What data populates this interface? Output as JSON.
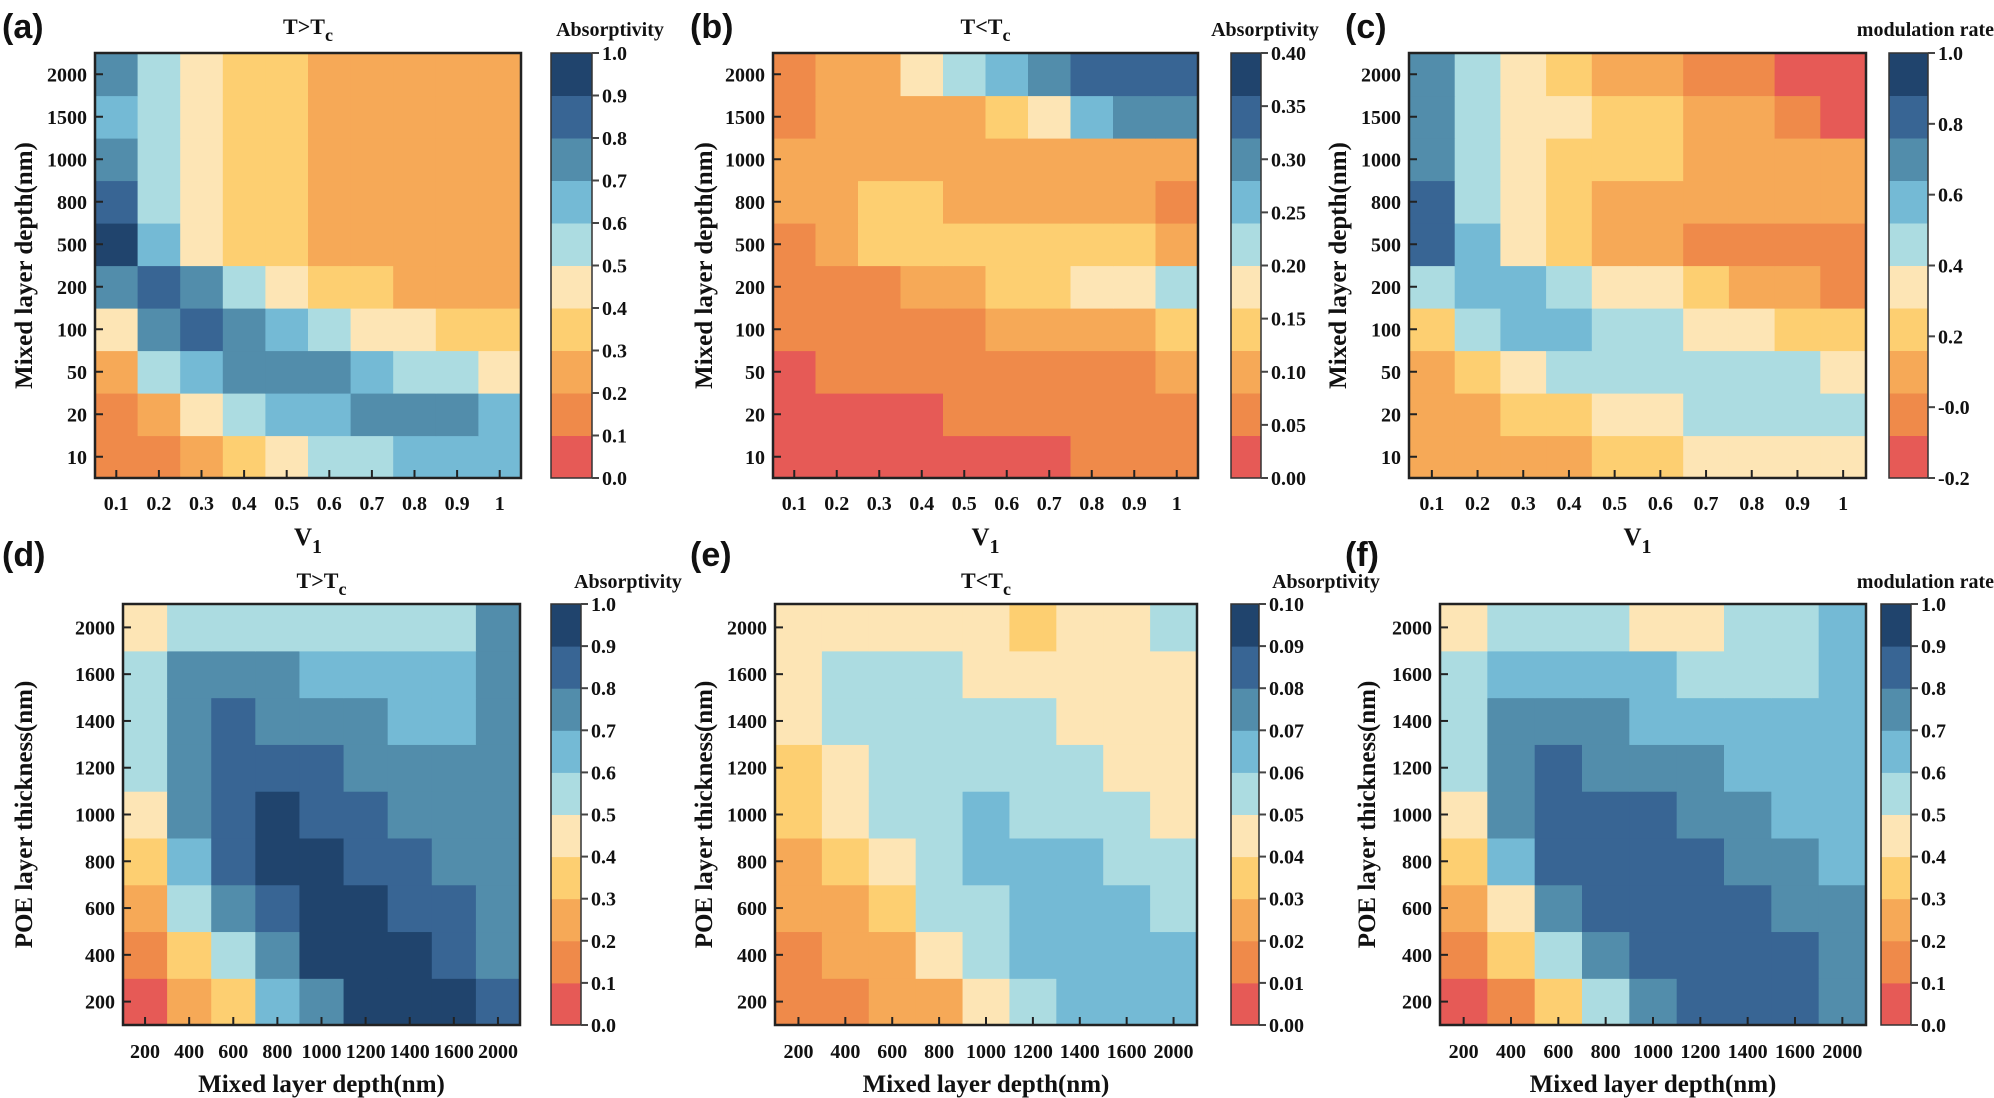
{
  "colormap": [
    "#e65a56",
    "#ef8a4a",
    "#f6a957",
    "#fdcf71",
    "#fde5b5",
    "#acdce1",
    "#74bad5",
    "#528dab",
    "#386594",
    "#20446d"
  ],
  "chart_data": [
    {
      "panel": "(a)",
      "type": "heatmap",
      "title": {
        "main": "T>T",
        "sub": "c"
      },
      "xlabel": {
        "main": "V",
        "sub": "1"
      },
      "ylabel": "Mixed layer depth(nm)",
      "x": [
        "0.1",
        "0.2",
        "0.3",
        "0.4",
        "0.5",
        "0.6",
        "0.7",
        "0.8",
        "0.9",
        "1"
      ],
      "y": [
        "10",
        "20",
        "50",
        "100",
        "200",
        "500",
        "800",
        "1000",
        "1500",
        "2000"
      ],
      "colorbar": {
        "label": "Absorptivity",
        "range": [
          0,
          1.0
        ],
        "ticks": [
          "0.0",
          "0.1",
          "0.2",
          "0.3",
          "0.4",
          "0.5",
          "0.6",
          "0.7",
          "0.8",
          "0.9",
          "1.0"
        ]
      },
      "z": [
        [
          0.15,
          0.15,
          0.25,
          0.35,
          0.45,
          0.55,
          0.55,
          0.65,
          0.65,
          0.65
        ],
        [
          0.15,
          0.25,
          0.45,
          0.55,
          0.65,
          0.65,
          0.75,
          0.75,
          0.75,
          0.65
        ],
        [
          0.25,
          0.55,
          0.65,
          0.75,
          0.75,
          0.75,
          0.65,
          0.55,
          0.55,
          0.45
        ],
        [
          0.45,
          0.75,
          0.85,
          0.75,
          0.65,
          0.55,
          0.45,
          0.45,
          0.35,
          0.35
        ],
        [
          0.75,
          0.85,
          0.75,
          0.55,
          0.45,
          0.35,
          0.35,
          0.25,
          0.25,
          0.25
        ],
        [
          0.95,
          0.65,
          0.45,
          0.35,
          0.35,
          0.25,
          0.25,
          0.25,
          0.25,
          0.25
        ],
        [
          0.85,
          0.55,
          0.45,
          0.35,
          0.35,
          0.25,
          0.25,
          0.25,
          0.25,
          0.25
        ],
        [
          0.75,
          0.55,
          0.45,
          0.35,
          0.35,
          0.25,
          0.25,
          0.25,
          0.25,
          0.25
        ],
        [
          0.65,
          0.55,
          0.45,
          0.35,
          0.35,
          0.25,
          0.25,
          0.25,
          0.25,
          0.25
        ],
        [
          0.75,
          0.55,
          0.45,
          0.35,
          0.35,
          0.25,
          0.25,
          0.25,
          0.25,
          0.25
        ]
      ]
    },
    {
      "panel": "(b)",
      "type": "heatmap",
      "title": {
        "main": "T<T",
        "sub": "c"
      },
      "xlabel": {
        "main": "V",
        "sub": "1"
      },
      "ylabel": "Mixed layer depth(nm)",
      "x": [
        "0.1",
        "0.2",
        "0.3",
        "0.4",
        "0.5",
        "0.6",
        "0.7",
        "0.8",
        "0.9",
        "1"
      ],
      "y": [
        "10",
        "20",
        "50",
        "100",
        "200",
        "500",
        "800",
        "1000",
        "1500",
        "2000"
      ],
      "colorbar": {
        "label": "Absorptivity",
        "range": [
          0,
          0.4
        ],
        "ticks": [
          "0.00",
          "0.05",
          "0.10",
          "0.15",
          "0.20",
          "0.25",
          "0.30",
          "0.35",
          "0.40"
        ]
      },
      "z": [
        [
          0.02,
          0.02,
          0.02,
          0.02,
          0.02,
          0.02,
          0.02,
          0.06,
          0.06,
          0.06
        ],
        [
          0.02,
          0.02,
          0.02,
          0.02,
          0.06,
          0.06,
          0.06,
          0.06,
          0.06,
          0.06
        ],
        [
          0.02,
          0.06,
          0.06,
          0.06,
          0.06,
          0.06,
          0.06,
          0.06,
          0.06,
          0.1
        ],
        [
          0.06,
          0.06,
          0.06,
          0.06,
          0.06,
          0.1,
          0.1,
          0.1,
          0.1,
          0.14
        ],
        [
          0.06,
          0.06,
          0.06,
          0.1,
          0.1,
          0.14,
          0.14,
          0.18,
          0.18,
          0.22
        ],
        [
          0.06,
          0.1,
          0.14,
          0.14,
          0.14,
          0.14,
          0.14,
          0.14,
          0.14,
          0.1
        ],
        [
          0.1,
          0.1,
          0.14,
          0.14,
          0.1,
          0.1,
          0.1,
          0.1,
          0.1,
          0.06
        ],
        [
          0.1,
          0.1,
          0.1,
          0.1,
          0.1,
          0.1,
          0.1,
          0.1,
          0.1,
          0.1
        ],
        [
          0.06,
          0.1,
          0.1,
          0.1,
          0.1,
          0.14,
          0.18,
          0.26,
          0.3,
          0.3
        ],
        [
          0.06,
          0.1,
          0.1,
          0.18,
          0.22,
          0.26,
          0.3,
          0.34,
          0.34,
          0.34
        ]
      ]
    },
    {
      "panel": "(c)",
      "type": "heatmap",
      "title": null,
      "xlabel": {
        "main": "V",
        "sub": "1"
      },
      "ylabel": "Mixed layer depth(nm)",
      "x": [
        "0.1",
        "0.2",
        "0.3",
        "0.4",
        "0.5",
        "0.6",
        "0.7",
        "0.8",
        "0.9",
        "1"
      ],
      "y": [
        "10",
        "20",
        "50",
        "100",
        "200",
        "500",
        "800",
        "1000",
        "1500",
        "2000"
      ],
      "colorbar": {
        "label": "modulation rate",
        "range": [
          -0.2,
          1.0
        ],
        "ticks": [
          "-0.2",
          "-0.0",
          "0.2",
          "0.4",
          "0.6",
          "0.8",
          "1.0"
        ]
      },
      "z": [
        [
          0.1,
          0.1,
          0.1,
          0.1,
          0.22,
          0.22,
          0.34,
          0.34,
          0.34,
          0.34
        ],
        [
          0.1,
          0.1,
          0.22,
          0.22,
          0.34,
          0.34,
          0.46,
          0.46,
          0.46,
          0.46
        ],
        [
          0.1,
          0.22,
          0.34,
          0.46,
          0.46,
          0.46,
          0.46,
          0.46,
          0.46,
          0.34
        ],
        [
          0.22,
          0.46,
          0.58,
          0.58,
          0.46,
          0.46,
          0.34,
          0.34,
          0.22,
          0.22
        ],
        [
          0.46,
          0.58,
          0.58,
          0.46,
          0.34,
          0.34,
          0.22,
          0.1,
          0.1,
          -0.02
        ],
        [
          0.82,
          0.58,
          0.34,
          0.22,
          0.1,
          0.1,
          -0.02,
          -0.02,
          -0.02,
          -0.02
        ],
        [
          0.82,
          0.46,
          0.34,
          0.22,
          0.1,
          0.1,
          0.1,
          0.1,
          0.1,
          0.1
        ],
        [
          0.7,
          0.46,
          0.34,
          0.22,
          0.22,
          0.22,
          0.1,
          0.1,
          0.1,
          0.1
        ],
        [
          0.7,
          0.46,
          0.34,
          0.34,
          0.22,
          0.22,
          0.1,
          0.1,
          -0.02,
          -0.14
        ],
        [
          0.7,
          0.46,
          0.34,
          0.22,
          0.1,
          0.1,
          -0.02,
          -0.02,
          -0.14,
          -0.14
        ]
      ]
    },
    {
      "panel": "(d)",
      "type": "heatmap",
      "title": {
        "main": "T>T",
        "sub": "c"
      },
      "xlabel": {
        "main": "Mixed layer depth(nm)",
        "sub": ""
      },
      "ylabel": "POE layer thickness(nm)",
      "x": [
        "200",
        "400",
        "600",
        "800",
        "1000",
        "1200",
        "1400",
        "1600",
        "2000"
      ],
      "y": [
        "200",
        "400",
        "600",
        "800",
        "1000",
        "1200",
        "1400",
        "1600",
        "2000"
      ],
      "colorbar": {
        "label": "Absorptivity",
        "range": [
          0,
          1.0
        ],
        "ticks": [
          "0.0",
          "0.1",
          "0.2",
          "0.3",
          "0.4",
          "0.5",
          "0.6",
          "0.7",
          "0.8",
          "0.9",
          "1.0"
        ]
      },
      "z": [
        [
          0.05,
          0.25,
          0.35,
          0.65,
          0.75,
          0.95,
          0.95,
          0.95,
          0.85
        ],
        [
          0.15,
          0.35,
          0.55,
          0.75,
          0.95,
          0.95,
          0.95,
          0.85,
          0.75
        ],
        [
          0.25,
          0.55,
          0.75,
          0.85,
          0.95,
          0.95,
          0.85,
          0.85,
          0.75
        ],
        [
          0.35,
          0.65,
          0.85,
          0.95,
          0.95,
          0.85,
          0.85,
          0.75,
          0.75
        ],
        [
          0.45,
          0.75,
          0.85,
          0.95,
          0.85,
          0.85,
          0.75,
          0.75,
          0.75
        ],
        [
          0.55,
          0.75,
          0.85,
          0.85,
          0.85,
          0.75,
          0.75,
          0.75,
          0.75
        ],
        [
          0.55,
          0.75,
          0.85,
          0.75,
          0.75,
          0.75,
          0.65,
          0.65,
          0.75
        ],
        [
          0.55,
          0.75,
          0.75,
          0.75,
          0.65,
          0.65,
          0.65,
          0.65,
          0.75
        ],
        [
          0.45,
          0.55,
          0.55,
          0.55,
          0.55,
          0.55,
          0.55,
          0.55,
          0.75
        ]
      ]
    },
    {
      "panel": "(e)",
      "type": "heatmap",
      "title": {
        "main": "T<T",
        "sub": "c"
      },
      "xlabel": {
        "main": "Mixed layer depth(nm)",
        "sub": ""
      },
      "ylabel": "POE layer thickness(nm)",
      "x": [
        "200",
        "400",
        "600",
        "800",
        "1000",
        "1200",
        "1400",
        "1600",
        "2000"
      ],
      "y": [
        "200",
        "400",
        "600",
        "800",
        "1000",
        "1200",
        "1400",
        "1600",
        "2000"
      ],
      "colorbar": {
        "label": "Absorptivity",
        "range": [
          0,
          0.1
        ],
        "ticks": [
          "0.00",
          "0.01",
          "0.02",
          "0.03",
          "0.04",
          "0.05",
          "0.06",
          "0.07",
          "0.08",
          "0.09",
          "0.10"
        ]
      },
      "z": [
        [
          0.015,
          0.015,
          0.025,
          0.025,
          0.045,
          0.055,
          0.065,
          0.065,
          0.065
        ],
        [
          0.015,
          0.025,
          0.025,
          0.045,
          0.055,
          0.065,
          0.065,
          0.065,
          0.065
        ],
        [
          0.025,
          0.025,
          0.035,
          0.055,
          0.055,
          0.065,
          0.065,
          0.065,
          0.055
        ],
        [
          0.025,
          0.035,
          0.045,
          0.055,
          0.065,
          0.065,
          0.065,
          0.055,
          0.055
        ],
        [
          0.035,
          0.045,
          0.055,
          0.055,
          0.065,
          0.055,
          0.055,
          0.055,
          0.045
        ],
        [
          0.035,
          0.045,
          0.055,
          0.055,
          0.055,
          0.055,
          0.055,
          0.045,
          0.045
        ],
        [
          0.045,
          0.055,
          0.055,
          0.055,
          0.055,
          0.055,
          0.045,
          0.045,
          0.045
        ],
        [
          0.045,
          0.055,
          0.055,
          0.055,
          0.045,
          0.045,
          0.045,
          0.045,
          0.045
        ],
        [
          0.045,
          0.045,
          0.045,
          0.045,
          0.045,
          0.035,
          0.045,
          0.045,
          0.055
        ]
      ]
    },
    {
      "panel": "(f)",
      "type": "heatmap",
      "title": null,
      "xlabel": {
        "main": "Mixed layer depth(nm)",
        "sub": ""
      },
      "ylabel": "POE layer thickness(nm)",
      "x": [
        "200",
        "400",
        "600",
        "800",
        "1000",
        "1200",
        "1400",
        "1600",
        "2000"
      ],
      "y": [
        "200",
        "400",
        "600",
        "800",
        "1000",
        "1200",
        "1400",
        "1600",
        "2000"
      ],
      "colorbar": {
        "label": "modulation rate",
        "range": [
          0,
          1.0
        ],
        "ticks": [
          "0.0",
          "0.1",
          "0.2",
          "0.3",
          "0.4",
          "0.5",
          "0.6",
          "0.7",
          "0.8",
          "0.9",
          "1.0"
        ]
      },
      "z": [
        [
          0.05,
          0.15,
          0.35,
          0.55,
          0.75,
          0.85,
          0.85,
          0.85,
          0.75
        ],
        [
          0.15,
          0.35,
          0.55,
          0.75,
          0.85,
          0.85,
          0.85,
          0.85,
          0.75
        ],
        [
          0.25,
          0.45,
          0.75,
          0.85,
          0.85,
          0.85,
          0.85,
          0.75,
          0.75
        ],
        [
          0.35,
          0.65,
          0.85,
          0.85,
          0.85,
          0.85,
          0.75,
          0.75,
          0.65
        ],
        [
          0.45,
          0.75,
          0.85,
          0.85,
          0.85,
          0.75,
          0.75,
          0.65,
          0.65
        ],
        [
          0.55,
          0.75,
          0.85,
          0.75,
          0.75,
          0.75,
          0.65,
          0.65,
          0.65
        ],
        [
          0.55,
          0.75,
          0.75,
          0.75,
          0.65,
          0.65,
          0.65,
          0.65,
          0.65
        ],
        [
          0.55,
          0.65,
          0.65,
          0.65,
          0.65,
          0.55,
          0.55,
          0.55,
          0.65
        ],
        [
          0.45,
          0.55,
          0.55,
          0.55,
          0.45,
          0.45,
          0.55,
          0.55,
          0.65
        ]
      ]
    }
  ]
}
